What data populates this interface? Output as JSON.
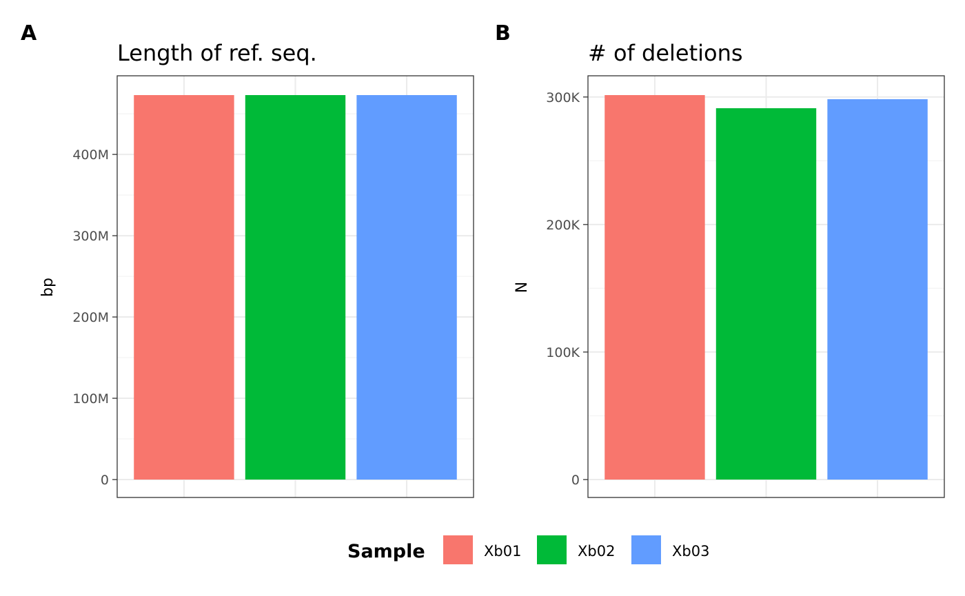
{
  "chart_data": [
    {
      "type": "bar",
      "panel_tag": "A",
      "title": "Length of ref. seq.",
      "xlabel": "",
      "ylabel": "bp",
      "categories": [
        "Xb01",
        "Xb02",
        "Xb03"
      ],
      "values": [
        473000000,
        473000000,
        473000000
      ],
      "ylim": [
        0,
        473000000
      ],
      "yticks": [
        0,
        100000000,
        200000000,
        300000000,
        400000000
      ],
      "ytick_labels": [
        "0",
        "100M",
        "200M",
        "300M",
        "400M"
      ],
      "colors": [
        "#F8766D",
        "#00BA38",
        "#619CFF"
      ],
      "grid": true
    },
    {
      "type": "bar",
      "panel_tag": "B",
      "title": "# of deletions",
      "xlabel": "",
      "ylabel": "N",
      "categories": [
        "Xb01",
        "Xb02",
        "Xb03"
      ],
      "values": [
        301500,
        291200,
        298300
      ],
      "ylim": [
        0,
        301500
      ],
      "yticks": [
        0,
        100000,
        200000,
        300000
      ],
      "ytick_labels": [
        "0",
        "100K",
        "200K",
        "300K"
      ],
      "colors": [
        "#F8766D",
        "#00BA38",
        "#619CFF"
      ],
      "grid": true
    }
  ],
  "legend": {
    "title": "Sample",
    "position": "bottom",
    "items": [
      {
        "label": "Xb01",
        "color": "#F8766D"
      },
      {
        "label": "Xb02",
        "color": "#00BA38"
      },
      {
        "label": "Xb03",
        "color": "#619CFF"
      }
    ]
  }
}
